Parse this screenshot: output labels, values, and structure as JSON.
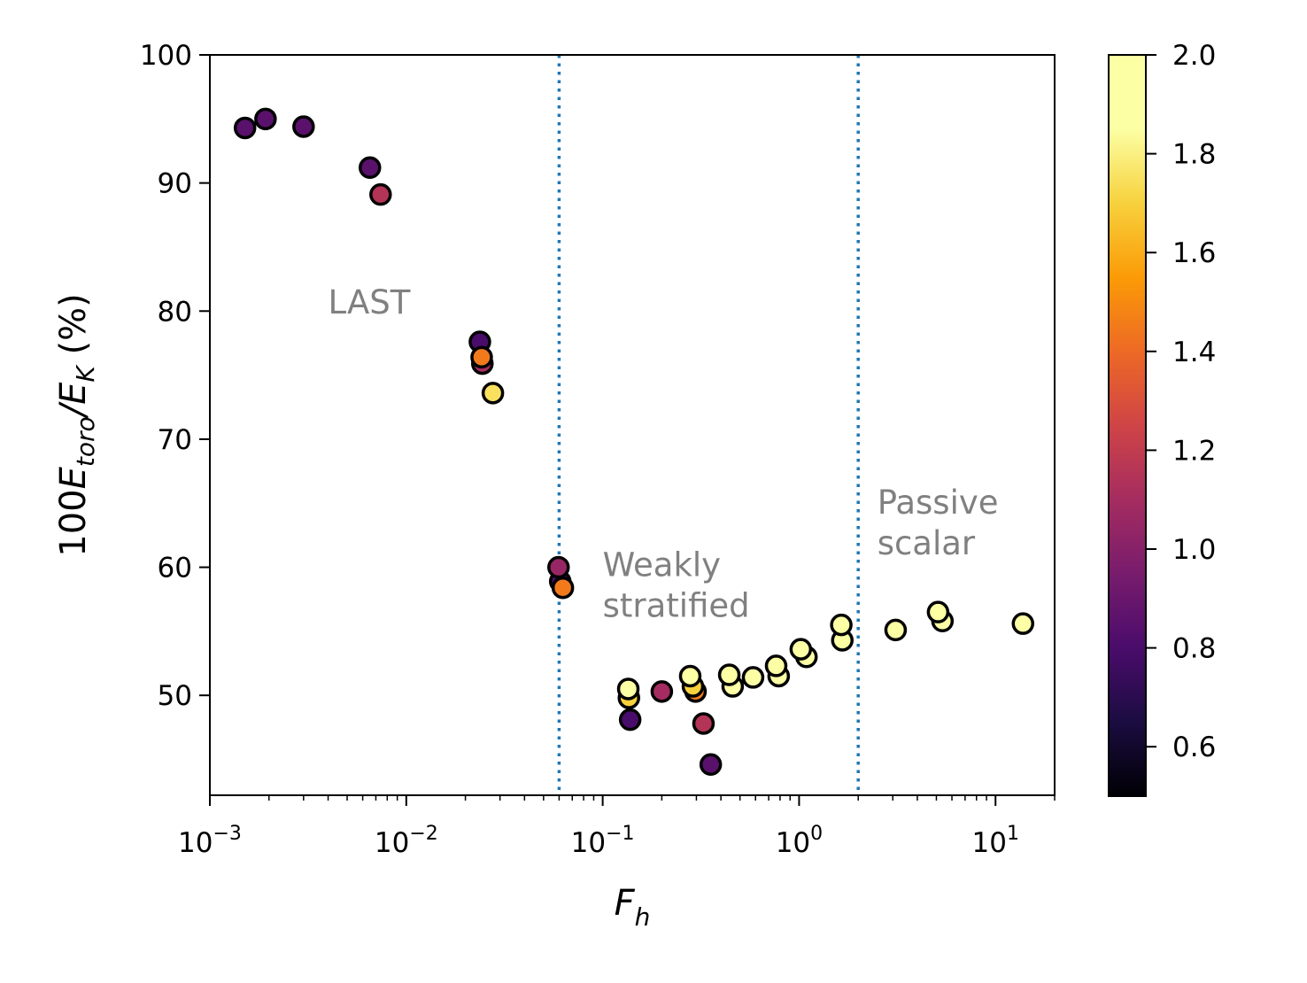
{
  "chart_data": {
    "type": "scatter",
    "title": "",
    "xlabel": "F_h",
    "xlabel_parts": {
      "main": "F",
      "sub": "h"
    },
    "ylabel": "100E_toro/E_K (%)",
    "ylabel_parts": {
      "prefix": "100",
      "e1": "E",
      "sub1": "toro",
      "slash": "/",
      "e2": "E",
      "sub2": "K",
      "suffix": " (%)"
    },
    "xscale": "log",
    "xlim": [
      0.001,
      20
    ],
    "ylim": [
      42.2,
      100
    ],
    "grid": false,
    "x_ticks": [
      {
        "value": 0.001,
        "base": "10",
        "exp": "−3"
      },
      {
        "value": 0.01,
        "base": "10",
        "exp": "−2"
      },
      {
        "value": 0.1,
        "base": "10",
        "exp": "−1"
      },
      {
        "value": 1,
        "base": "10",
        "exp": "0"
      },
      {
        "value": 10,
        "base": "10",
        "exp": "1"
      }
    ],
    "y_ticks": [
      {
        "value": 50,
        "label": "50"
      },
      {
        "value": 60,
        "label": "60"
      },
      {
        "value": 70,
        "label": "70"
      },
      {
        "value": 80,
        "label": "80"
      },
      {
        "value": 90,
        "label": "90"
      },
      {
        "value": 100,
        "label": "100"
      }
    ],
    "colorbar": {
      "colormap": "inferno",
      "range": [
        0.5,
        2.0
      ],
      "ticks": [
        {
          "value": 0.6,
          "label": "0.6"
        },
        {
          "value": 0.8,
          "label": "0.8"
        },
        {
          "value": 1.0,
          "label": "1.0"
        },
        {
          "value": 1.2,
          "label": "1.2"
        },
        {
          "value": 1.4,
          "label": "1.4"
        },
        {
          "value": 1.6,
          "label": "1.6"
        },
        {
          "value": 1.8,
          "label": "1.8"
        },
        {
          "value": 2.0,
          "label": "2.0"
        }
      ]
    },
    "vlines": [
      {
        "x": 0.06,
        "style": "dotted",
        "color": "#1f77b4"
      },
      {
        "x": 2.0,
        "style": "dotted",
        "color": "#1f77b4"
      }
    ],
    "annotations": [
      {
        "lines": [
          "LAST"
        ],
        "x": 0.004,
        "y": 79.8
      },
      {
        "lines": [
          "Weakly",
          "stratified"
        ],
        "x": 0.1,
        "y": 59.3
      },
      {
        "lines": [
          "Passive",
          "scalar"
        ],
        "x": 2.5,
        "y": 64.2
      }
    ],
    "points": [
      {
        "x": 0.00151,
        "y": 94.3,
        "c": 0.85
      },
      {
        "x": 0.00192,
        "y": 95.0,
        "c": 0.85
      },
      {
        "x": 0.003,
        "y": 94.4,
        "c": 0.85
      },
      {
        "x": 0.00653,
        "y": 91.2,
        "c": 0.85
      },
      {
        "x": 0.0074,
        "y": 89.1,
        "c": 1.15
      },
      {
        "x": 0.0237,
        "y": 77.6,
        "c": 0.8
      },
      {
        "x": 0.0244,
        "y": 75.9,
        "c": 1.1
      },
      {
        "x": 0.0242,
        "y": 76.4,
        "c": 1.45
      },
      {
        "x": 0.0276,
        "y": 73.6,
        "c": 1.75
      },
      {
        "x": 0.0608,
        "y": 58.9,
        "c": 0.8
      },
      {
        "x": 0.0596,
        "y": 60.0,
        "c": 1.05
      },
      {
        "x": 0.0627,
        "y": 58.4,
        "c": 1.45
      },
      {
        "x": 0.138,
        "y": 48.1,
        "c": 0.8
      },
      {
        "x": 0.136,
        "y": 49.8,
        "c": 1.7
      },
      {
        "x": 0.135,
        "y": 50.5,
        "c": 1.95
      },
      {
        "x": 0.2,
        "y": 50.3,
        "c": 1.1
      },
      {
        "x": 0.297,
        "y": 50.3,
        "c": 1.45
      },
      {
        "x": 0.288,
        "y": 50.7,
        "c": 1.7
      },
      {
        "x": 0.279,
        "y": 51.5,
        "c": 1.95
      },
      {
        "x": 0.326,
        "y": 47.8,
        "c": 1.15
      },
      {
        "x": 0.355,
        "y": 44.6,
        "c": 0.85
      },
      {
        "x": 0.459,
        "y": 50.7,
        "c": 1.85
      },
      {
        "x": 0.441,
        "y": 51.6,
        "c": 1.95
      },
      {
        "x": 0.583,
        "y": 51.4,
        "c": 1.95
      },
      {
        "x": 0.787,
        "y": 51.5,
        "c": 1.95
      },
      {
        "x": 0.764,
        "y": 52.3,
        "c": 1.95
      },
      {
        "x": 1.09,
        "y": 53.0,
        "c": 1.95
      },
      {
        "x": 1.02,
        "y": 53.6,
        "c": 1.95
      },
      {
        "x": 1.66,
        "y": 54.3,
        "c": 1.95
      },
      {
        "x": 1.64,
        "y": 55.5,
        "c": 1.95
      },
      {
        "x": 3.1,
        "y": 55.1,
        "c": 1.95
      },
      {
        "x": 5.37,
        "y": 55.8,
        "c": 1.95
      },
      {
        "x": 5.1,
        "y": 56.5,
        "c": 1.95
      },
      {
        "x": 13.8,
        "y": 55.6,
        "c": 1.95
      }
    ]
  }
}
